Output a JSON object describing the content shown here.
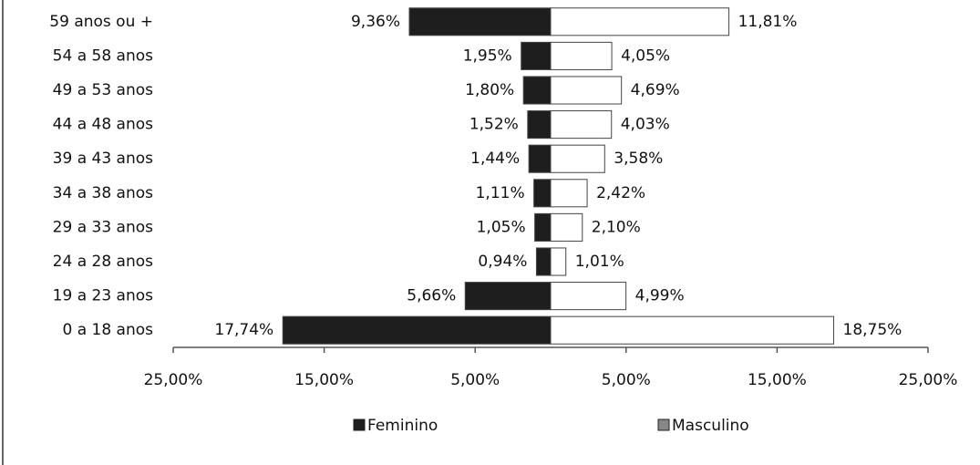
{
  "chart_data": {
    "type": "bar",
    "orientation": "horizontal",
    "stacked": false,
    "categories": [
      "59 anos ou +",
      "54 a  58 anos",
      "49 a  53 anos",
      "44 a  48 anos",
      "39 a  43 anos",
      "34 a  38 anos",
      "29 a  33 anos",
      "24 a  28 anos",
      "19 a  23 anos",
      "0 a  18 anos"
    ],
    "series": [
      {
        "name": "Feminino",
        "color": "#1e1e1e",
        "values": [
          -9.36,
          -1.95,
          -1.8,
          -1.52,
          -1.44,
          -1.11,
          -1.05,
          -0.94,
          -5.66,
          -17.74
        ],
        "value_labels": [
          "9,36%",
          "1,95%",
          "1,80%",
          "1,52%",
          "1,44%",
          "1,11%",
          "1,05%",
          "0,94%",
          "5,66%",
          "17,74%"
        ]
      },
      {
        "name": "Masculino",
        "color": "#ffffff",
        "values": [
          11.81,
          4.05,
          4.69,
          4.03,
          3.58,
          2.42,
          2.1,
          1.01,
          4.99,
          18.75
        ],
        "value_labels": [
          "11,81%",
          "4,05%",
          "4,69%",
          "4,03%",
          "3,58%",
          "2,42%",
          "2,10%",
          "1,01%",
          "4,99%",
          "18,75%"
        ]
      }
    ],
    "xlim": [
      -25,
      25
    ],
    "xticks": [
      {
        "value": -25,
        "label": "25,00%"
      },
      {
        "value": -15,
        "label": "15,00%"
      },
      {
        "value": -5,
        "label": "5,00%"
      },
      {
        "value": 5,
        "label": "5,00%"
      },
      {
        "value": 15,
        "label": "15,00%"
      },
      {
        "value": 25,
        "label": "25,00%"
      }
    ],
    "legend": "bottom"
  }
}
